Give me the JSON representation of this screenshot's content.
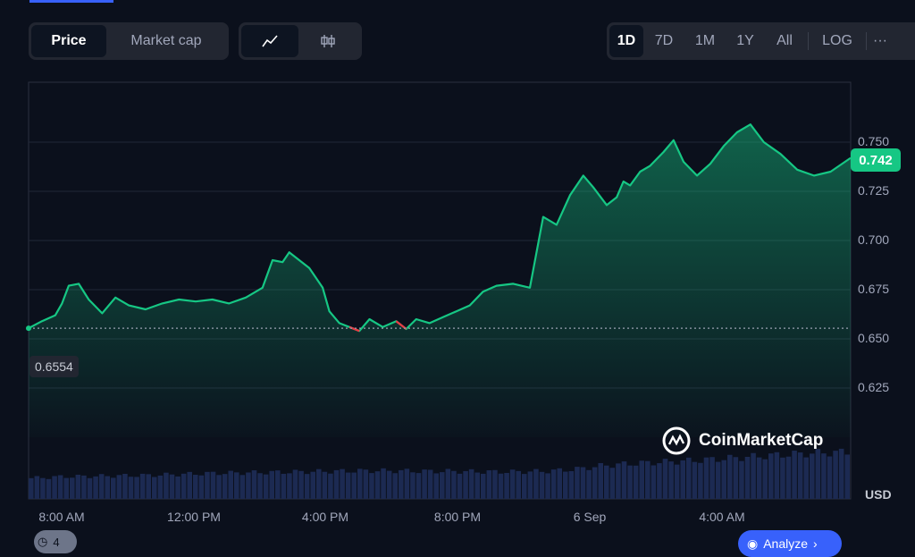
{
  "tabs": {
    "price": "Price",
    "market_cap": "Market cap",
    "line_icon": "line-chart-icon",
    "candle_icon": "candlestick-icon"
  },
  "ranges": [
    "1D",
    "7D",
    "1M",
    "1Y",
    "All"
  ],
  "log_label": "LOG",
  "more_label": "···",
  "current_price": "0.742",
  "start_price": "0.6554",
  "watermark": "CoinMarketCap",
  "currency": "USD",
  "bottom_left_badge": "4",
  "bottom_right_button": "Analyze",
  "colors": {
    "up": "#16c784",
    "down": "#ea3943",
    "accent": "#3861fb",
    "background": "#0b101c"
  },
  "chart_data": {
    "type": "area",
    "ylim": [
      0.6,
      0.765
    ],
    "y_ticks": [
      "0.750",
      "0.725",
      "0.700",
      "0.675",
      "0.650",
      "0.625"
    ],
    "x_tick_labels": [
      "8:00 AM",
      "12:00 PM",
      "4:00 PM",
      "8:00 PM",
      "6 Sep",
      "4:00 AM"
    ],
    "baseline": 0.6554,
    "series": [
      {
        "x_hours": [
          0,
          0.4,
          0.8,
          1.0,
          1.2,
          1.5,
          1.8,
          2.2,
          2.6,
          3.0,
          3.5,
          4.0,
          4.5,
          5.0,
          5.5,
          6.0,
          6.5,
          7.0,
          7.3,
          7.6,
          7.8,
          8.1,
          8.4,
          8.8,
          9.0,
          9.3,
          9.6,
          9.9,
          10.2,
          10.6,
          11.0,
          11.3,
          11.6,
          12.0,
          12.4,
          12.8,
          13.2,
          13.6,
          14.0,
          14.5,
          15.0,
          15.4,
          15.8,
          16.2,
          16.6,
          16.9,
          17.3,
          17.6,
          17.8,
          18.0,
          18.3,
          18.6,
          19.0,
          19.3,
          19.6,
          20.0,
          20.4,
          20.8,
          21.2,
          21.6,
          22.0,
          22.5,
          23.0,
          23.5,
          24.0,
          24.6
        ],
        "y_price": [
          0.6554,
          0.659,
          0.662,
          0.668,
          0.677,
          0.678,
          0.67,
          0.663,
          0.671,
          0.667,
          0.665,
          0.668,
          0.67,
          0.669,
          0.67,
          0.668,
          0.671,
          0.676,
          0.69,
          0.689,
          0.694,
          0.69,
          0.686,
          0.676,
          0.664,
          0.658,
          0.656,
          0.654,
          0.66,
          0.656,
          0.659,
          0.655,
          0.66,
          0.658,
          0.661,
          0.664,
          0.667,
          0.674,
          0.677,
          0.678,
          0.676,
          0.712,
          0.708,
          0.723,
          0.733,
          0.727,
          0.718,
          0.722,
          0.73,
          0.728,
          0.735,
          0.738,
          0.745,
          0.751,
          0.74,
          0.733,
          0.739,
          0.748,
          0.755,
          0.759,
          0.75,
          0.744,
          0.736,
          0.733,
          0.735,
          0.742
        ]
      }
    ],
    "volume_rel": [
      0.42,
      0.45,
      0.46,
      0.47,
      0.48,
      0.5,
      0.52,
      0.53,
      0.54,
      0.55,
      0.56,
      0.57,
      0.57,
      0.56,
      0.56,
      0.55,
      0.55,
      0.56,
      0.6,
      0.68,
      0.72,
      0.75,
      0.78,
      0.82,
      0.86,
      0.9,
      0.93,
      0.95
    ]
  }
}
